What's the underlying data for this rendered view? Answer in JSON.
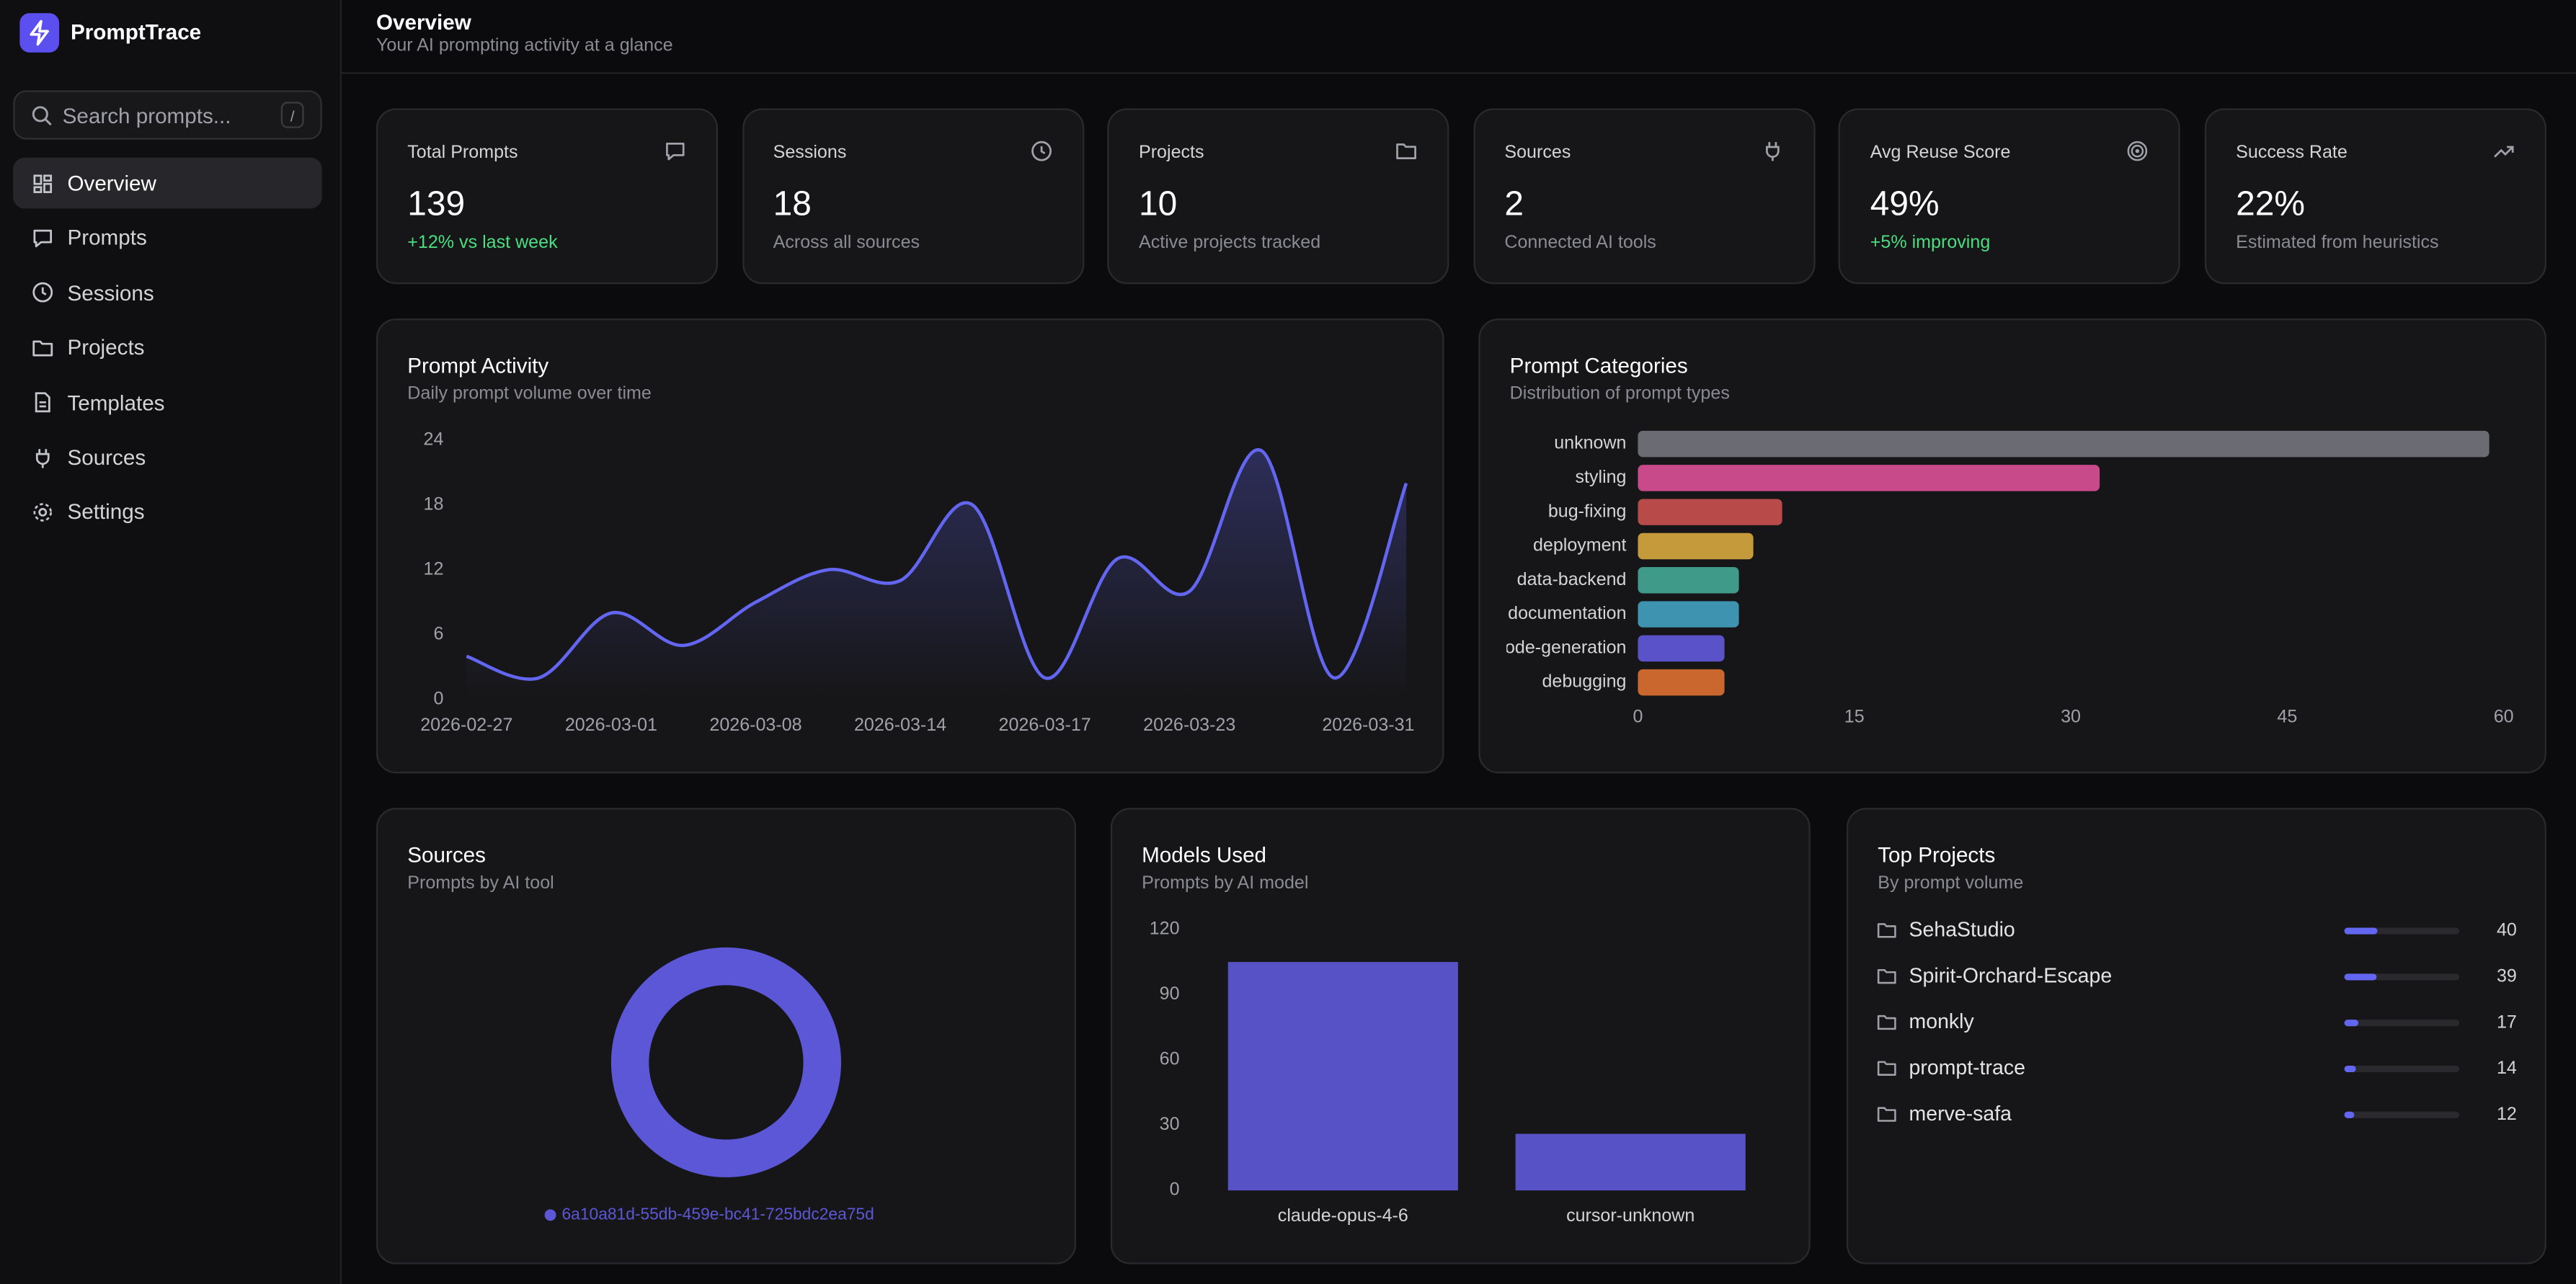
{
  "brand": "PromptTrace",
  "search": {
    "placeholder": "Search prompts...",
    "shortcut": "/"
  },
  "nav": [
    "Overview",
    "Prompts",
    "Sessions",
    "Projects",
    "Templates",
    "Sources",
    "Settings"
  ],
  "header": {
    "title": "Overview",
    "subtitle": "Your AI prompting activity at a glance"
  },
  "stats": [
    {
      "label": "Total Prompts",
      "value": 139,
      "note": "+12% vs last week"
    },
    {
      "label": "Sessions",
      "value": 18,
      "note": "Across all sources"
    },
    {
      "label": "Projects",
      "value": 10,
      "note": "Active projects tracked"
    },
    {
      "label": "Sources",
      "value": 2,
      "note": "Connected AI tools"
    },
    {
      "label": "Avg Reuse Score",
      "value": "49%",
      "note": "+5% improving"
    },
    {
      "label": "Success Rate",
      "value": "22%",
      "note": "Estimated from heuristics"
    }
  ],
  "chart_data": [
    {
      "type": "line",
      "title": "Prompt Activity",
      "subtitle": "Daily prompt volume over time",
      "categories": [
        "2026-02-27",
        null,
        "2026-03-01",
        null,
        "2026-03-08",
        null,
        "2026-03-14",
        null,
        "2026-03-17",
        null,
        "2026-03-23",
        null,
        null,
        "2026-03-31"
      ],
      "values": [
        4,
        2,
        8,
        5,
        9,
        12,
        11,
        18,
        2,
        13,
        10,
        23,
        2,
        20
      ],
      "color": "#6366f1",
      "ylim": [
        0,
        24
      ],
      "yticks": [
        0,
        6,
        12,
        18,
        24
      ]
    },
    {
      "type": "bar",
      "orientation": "horizontal",
      "title": "Prompt Categories",
      "subtitle": "Distribution of prompt types",
      "categories": [
        "unknown",
        "styling",
        "bug-fixing",
        "deployment",
        "data-backend",
        "documentation",
        "code-generation",
        "debugging"
      ],
      "values": [
        59,
        32,
        10,
        8,
        7,
        7,
        6,
        6
      ],
      "colors": [
        "#6b6b73",
        "#c94a8a",
        "#b94a4a",
        "#c49a3a",
        "#3f9a8a",
        "#3d93b0",
        "#5a52c8",
        "#c9672e"
      ],
      "xlim": [
        0,
        60
      ],
      "xticks": [
        0,
        15,
        30,
        45,
        60
      ]
    },
    {
      "type": "pie",
      "title": "Sources",
      "subtitle": "Prompts by AI tool",
      "categories": [
        "6a10a81d-55db-459e-bc41-725bdc2ea75d"
      ],
      "values": [
        139
      ],
      "colors": [
        "#5b57d6"
      ]
    },
    {
      "type": "bar",
      "title": "Models Used",
      "subtitle": "Prompts by AI model",
      "categories": [
        "claude-opus-4-6",
        "cursor-unknown"
      ],
      "values": [
        105,
        26
      ],
      "color": "#5753c6",
      "ylim": [
        0,
        120
      ],
      "yticks": [
        0,
        30,
        60,
        90,
        120
      ]
    }
  ],
  "top_projects": {
    "title": "Top Projects",
    "subtitle": "By prompt volume",
    "items": [
      {
        "name": "SehaStudio",
        "value": 40
      },
      {
        "name": "Spirit-Orchard-Escape",
        "value": 39
      },
      {
        "name": "monkly",
        "value": 17
      },
      {
        "name": "prompt-trace",
        "value": 14
      },
      {
        "name": "merve-safa",
        "value": 12
      }
    ]
  }
}
